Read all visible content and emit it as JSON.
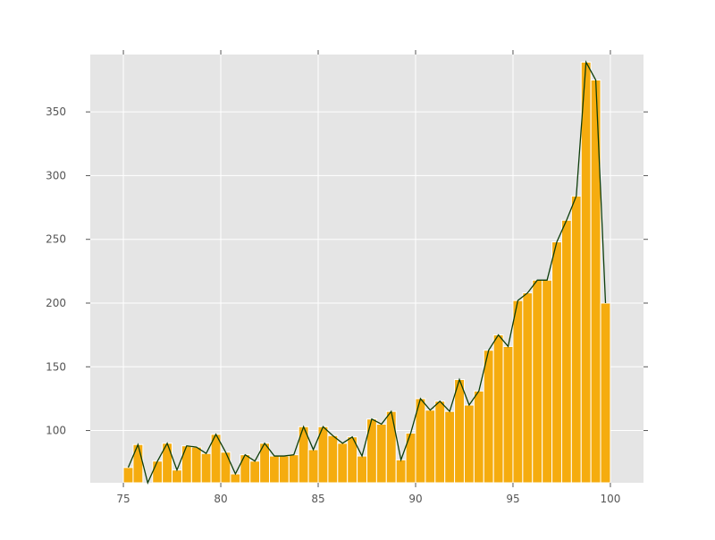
{
  "chart_data": {
    "type": "bar",
    "title": "",
    "xlabel": "",
    "ylabel": "",
    "xlim": [
      73.3,
      101.7
    ],
    "ylim": [
      59,
      395
    ],
    "xticks": [
      75,
      80,
      85,
      90,
      95,
      100
    ],
    "yticks": [
      100,
      150,
      200,
      250,
      300,
      350
    ],
    "grid": true,
    "bar_width": 0.5,
    "colors": {
      "bar": "#f5ac0f",
      "bar_edge": "#ffffff",
      "line": "#0d3d0a",
      "background": "#e5e5e5",
      "grid": "#ffffff"
    },
    "x": [
      75.25,
      75.75,
      76.25,
      76.75,
      77.25,
      77.75,
      78.25,
      78.75,
      79.25,
      79.75,
      80.25,
      80.75,
      81.25,
      81.75,
      82.25,
      82.75,
      83.25,
      83.75,
      84.25,
      84.75,
      85.25,
      85.75,
      86.25,
      86.75,
      87.25,
      87.75,
      88.25,
      88.75,
      89.25,
      89.75,
      90.25,
      90.75,
      91.25,
      91.75,
      92.25,
      92.75,
      93.25,
      93.75,
      94.25,
      94.75,
      95.25,
      95.75,
      96.25,
      96.75,
      97.25,
      97.75,
      98.25,
      98.75,
      99.25,
      99.75
    ],
    "values": [
      71,
      89,
      57,
      76,
      90,
      69,
      88,
      87,
      82,
      97,
      83,
      66,
      81,
      76,
      90,
      80,
      80,
      81,
      103,
      85,
      103,
      96,
      90,
      95,
      80,
      109,
      105,
      115,
      77,
      98,
      125,
      116,
      123,
      115,
      140,
      120,
      131,
      163,
      175,
      166,
      202,
      208,
      218,
      218,
      248,
      265,
      284,
      389,
      375,
      200
    ]
  }
}
